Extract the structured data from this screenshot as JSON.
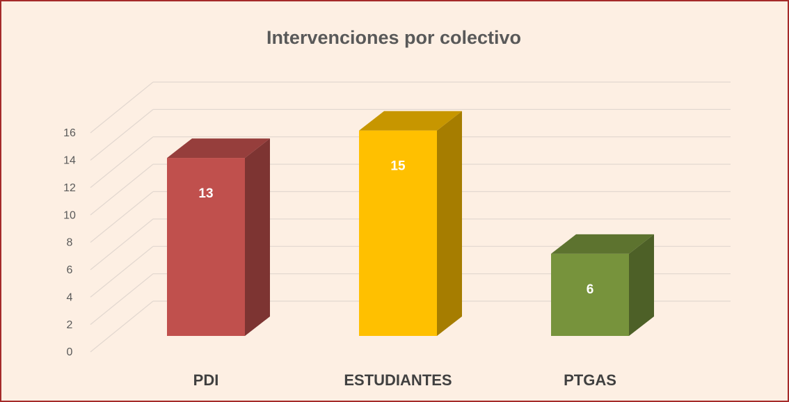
{
  "chart_data": {
    "type": "bar3d",
    "title": "Intervenciones por colectivo",
    "categories": [
      "PDI",
      "ESTUDIANTES",
      "PTGAS"
    ],
    "values": [
      13,
      15,
      6
    ],
    "colors": [
      "#c0504d",
      "#ffc000",
      "#77933c"
    ],
    "ylim": [
      0,
      16
    ],
    "yticks": [
      0,
      2,
      4,
      6,
      8,
      10,
      12,
      14,
      16
    ],
    "grid": true
  }
}
